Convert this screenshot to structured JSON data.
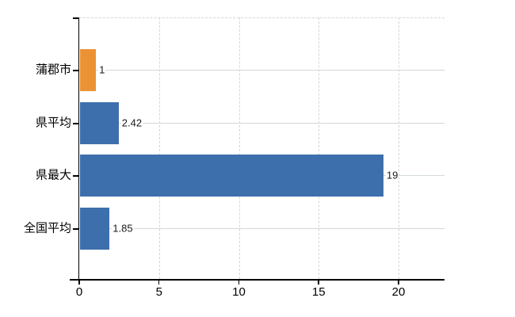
{
  "chart": {
    "title": "",
    "colors": {
      "background": "#ffffff",
      "axis": "#000000",
      "grid_horizontal": "#d2d9d2",
      "grid_vertical": "#d6d6d6",
      "value_label": "#1a1a1a",
      "category_label": "#000000"
    }
  },
  "chart_data": {
    "type": "bar",
    "orientation": "horizontal",
    "title": "",
    "xlabel": "",
    "ylabel": "",
    "categories": [
      "蒲郡市",
      "県平均",
      "県最大",
      "全国平均"
    ],
    "values": [
      1,
      2.42,
      19,
      1.85
    ],
    "value_labels": [
      "1",
      "2.42",
      "19",
      "1.85"
    ],
    "bar_colors": [
      "#EB9334",
      "#3D6FAD",
      "#3D6FAD",
      "#3D6FAD"
    ],
    "x_ticks": [
      0,
      5,
      10,
      15,
      20
    ],
    "x_tick_labels": [
      "0",
      "5",
      "10",
      "15",
      "20"
    ],
    "xlim": [
      0,
      22.9
    ],
    "grid": true,
    "legend": false
  }
}
